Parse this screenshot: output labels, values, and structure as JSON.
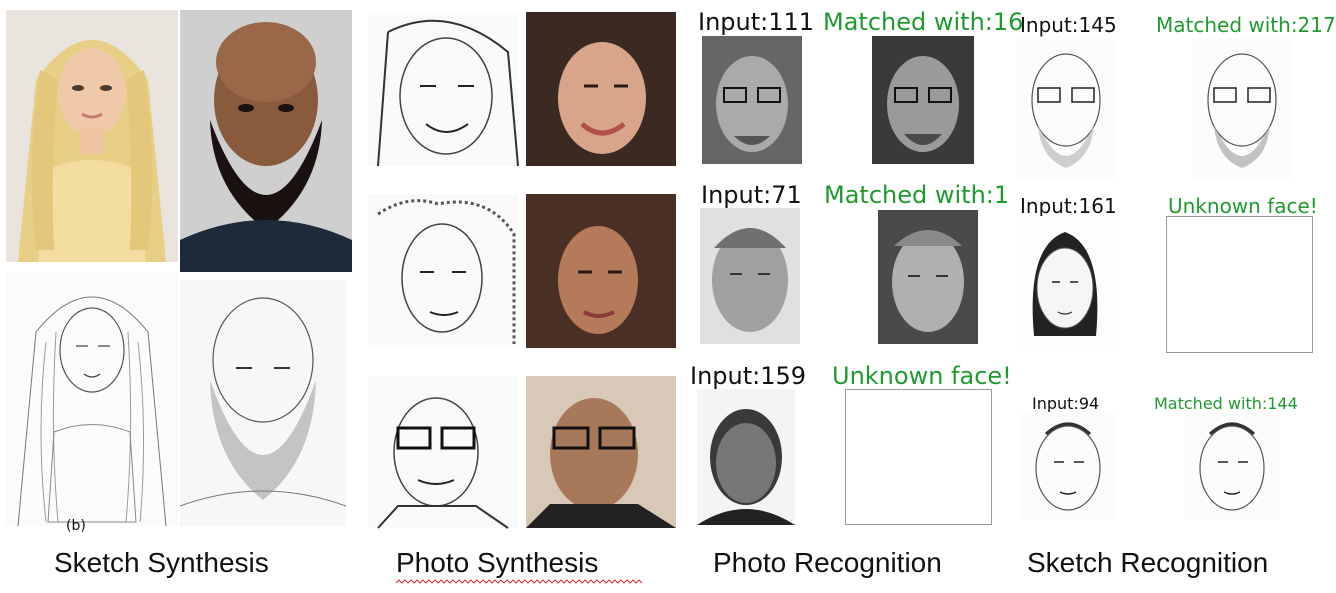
{
  "captions": {
    "sketch_synthesis": "Sketch Synthesis",
    "photo_synthesis": "Photo Synthesis",
    "photo_recognition": "Photo Recognition",
    "sketch_recognition": "Sketch Recognition"
  },
  "photo_recognition": {
    "row1": {
      "input": "Input:111",
      "result": "Matched with:16"
    },
    "row2": {
      "input": "Input:71",
      "result": "Matched with:1"
    },
    "row3": {
      "input": "Input:159",
      "result": "Unknown face!"
    }
  },
  "sketch_recognition": {
    "row1": {
      "input": "Input:145",
      "result": "Matched with:217"
    },
    "row2": {
      "input": "Input:161",
      "result": "Unknown face!"
    },
    "row3": {
      "input": "Input:94",
      "result": "Matched with:144"
    }
  },
  "stray_label": "(b)",
  "colors": {
    "match_green": "#1f9a2e",
    "frame_gray": "#9a9a9a"
  }
}
